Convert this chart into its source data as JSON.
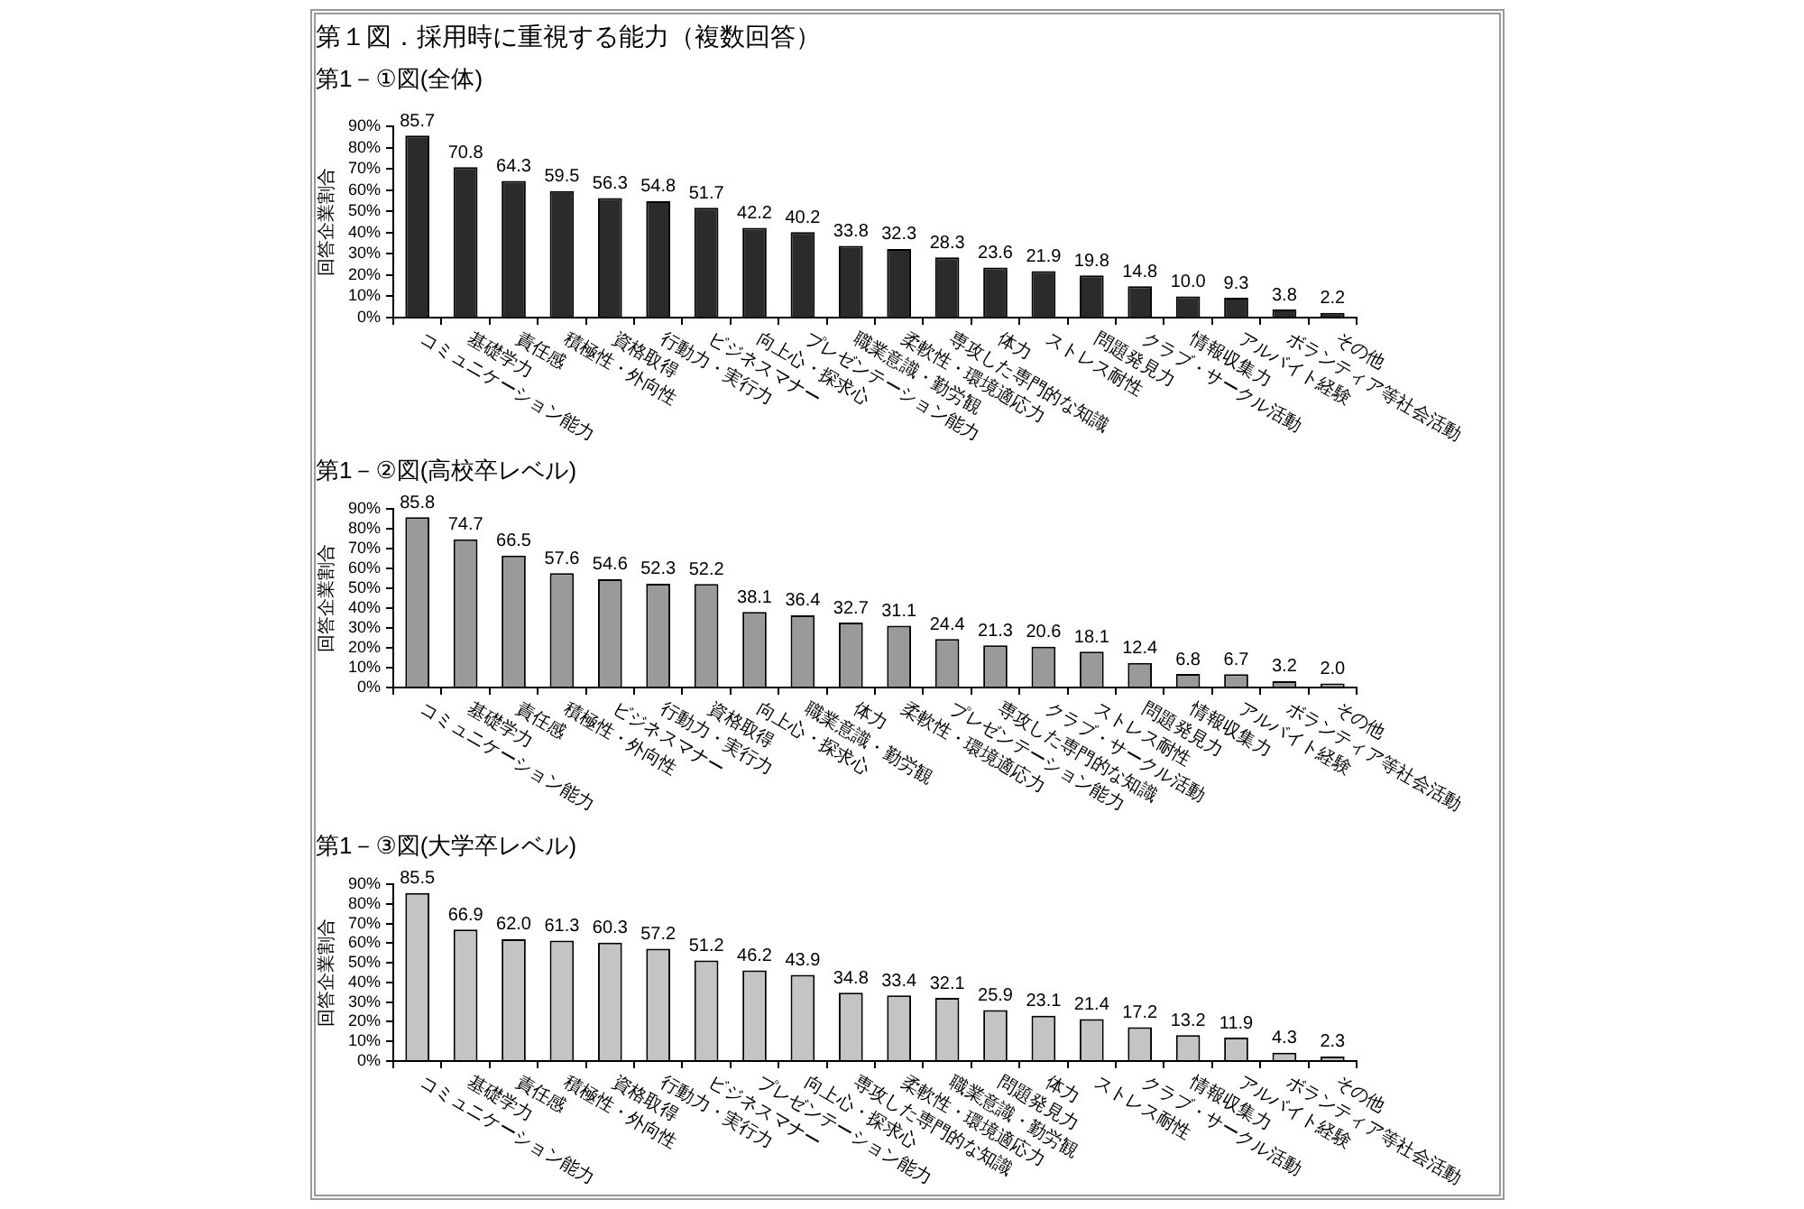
{
  "chart_data": [
    {
      "type": "bar",
      "title": "第１図．採用時に重視する能力（複数回答）",
      "subtitle": "第1－①図(全体)",
      "ylabel": "回答企業割合",
      "categories": [
        "コミュニケーション能力",
        "基礎学力",
        "責任感",
        "積極性・外向性",
        "資格取得",
        "行動力・実行力",
        "ビジネスマナー",
        "向上心・探求心",
        "プレゼンテーション能力",
        "職業意識・勤労観",
        "柔軟性・環境適応力",
        "専攻した専門的な知識",
        "体力",
        "ストレス耐性",
        "問題発見力",
        "クラブ・サークル活動",
        "情報収集力",
        "アルバイト経験",
        "ボランティア等社会活動",
        "その他"
      ],
      "values": [
        85.7,
        70.8,
        64.3,
        59.5,
        56.3,
        54.8,
        51.7,
        42.2,
        40.2,
        33.8,
        32.3,
        28.3,
        23.6,
        21.9,
        19.8,
        14.8,
        10.0,
        9.3,
        3.8,
        2.2
      ],
      "value_labels": [
        "85.7",
        "70.8",
        "64.3",
        "59.5",
        "56.3",
        "54.8",
        "51.7",
        "42.2",
        "40.2",
        "33.8",
        "32.3",
        "28.3",
        "23.6",
        "21.9",
        "19.8",
        "14.8",
        "10.0",
        "9.3",
        "3.8",
        "2.2"
      ],
      "color": "#2b2b2b",
      "ylim": [
        0,
        90
      ],
      "yticks": [
        {
          "value": 0,
          "label": "0%"
        },
        {
          "value": 10,
          "label": "10%"
        },
        {
          "value": 20,
          "label": "20%"
        },
        {
          "value": 30,
          "label": "30%"
        },
        {
          "value": 40,
          "label": "40%"
        },
        {
          "value": 50,
          "label": "50%"
        },
        {
          "value": 60,
          "label": "60%"
        },
        {
          "value": 70,
          "label": "70%"
        },
        {
          "value": 80,
          "label": "80%"
        },
        {
          "value": 90,
          "label": "90%"
        }
      ]
    },
    {
      "type": "bar",
      "title": "第1－②図(高校卒レベル)",
      "ylabel": "回答企業割合",
      "categories": [
        "コミュニケーション能力",
        "基礎学力",
        "責任感",
        "積極性・外向性",
        "ビジネスマナー",
        "行動力・実行力",
        "資格取得",
        "向上心・探求心",
        "職業意識・勤労観",
        "体力",
        "柔軟性・環境適応力",
        "プレゼンテーション能力",
        "専攻した専門的な知識",
        "クラブ・サークル活動",
        "ストレス耐性",
        "問題発見力",
        "情報収集力",
        "アルバイト経験",
        "ボランティア等社会活動",
        "その他"
      ],
      "values": [
        85.8,
        74.7,
        66.5,
        57.6,
        54.6,
        52.3,
        52.2,
        38.1,
        36.4,
        32.7,
        31.1,
        24.4,
        21.3,
        20.6,
        18.1,
        12.4,
        6.8,
        6.7,
        3.2,
        2.0
      ],
      "value_labels": [
        "85.8",
        "74.7",
        "66.5",
        "57.6",
        "54.6",
        "52.3",
        "52.2",
        "38.1",
        "36.4",
        "32.7",
        "31.1",
        "24.4",
        "21.3",
        "20.6",
        "18.1",
        "12.4",
        "6.8",
        "6.7",
        "3.2",
        "2.0"
      ],
      "color": "#9a9a9a",
      "ylim": [
        0,
        90
      ],
      "yticks": [
        {
          "value": 0,
          "label": "0%"
        },
        {
          "value": 10,
          "label": "10%"
        },
        {
          "value": 20,
          "label": "20%"
        },
        {
          "value": 30,
          "label": "30%"
        },
        {
          "value": 40,
          "label": "40%"
        },
        {
          "value": 50,
          "label": "50%"
        },
        {
          "value": 60,
          "label": "60%"
        },
        {
          "value": 70,
          "label": "70%"
        },
        {
          "value": 80,
          "label": "80%"
        },
        {
          "value": 90,
          "label": "90%"
        }
      ]
    },
    {
      "type": "bar",
      "title": "第1－③図(大学卒レベル)",
      "ylabel": "回答企業割合",
      "categories": [
        "コミュニケーション能力",
        "基礎学力",
        "責任感",
        "積極性・外向性",
        "資格取得",
        "行動力・実行力",
        "ビジネスマナー",
        "プレゼンテーション能力",
        "向上心・探求心",
        "専攻した専門的な知識",
        "柔軟性・環境適応力",
        "職業意識・勤労観",
        "問題発見力",
        "体力",
        "ストレス耐性",
        "クラブ・サークル活動",
        "情報収集力",
        "アルバイト経験",
        "ボランティア等社会活動",
        "その他"
      ],
      "values": [
        85.5,
        66.9,
        62.0,
        61.3,
        60.3,
        57.2,
        51.2,
        46.2,
        43.9,
        34.8,
        33.4,
        32.1,
        25.9,
        23.1,
        21.4,
        17.2,
        13.2,
        11.9,
        4.3,
        2.3
      ],
      "value_labels": [
        "85.5",
        "66.9",
        "62.0",
        "61.3",
        "60.3",
        "57.2",
        "51.2",
        "46.2",
        "43.9",
        "34.8",
        "33.4",
        "32.1",
        "25.9",
        "23.1",
        "21.4",
        "17.2",
        "13.2",
        "11.9",
        "4.3",
        "2.3"
      ],
      "color": "#c4c4c4",
      "ylim": [
        0,
        90
      ],
      "yticks": [
        {
          "value": 0,
          "label": "0%"
        },
        {
          "value": 10,
          "label": "10%"
        },
        {
          "value": 20,
          "label": "20%"
        },
        {
          "value": 30,
          "label": "30%"
        },
        {
          "value": 40,
          "label": "40%"
        },
        {
          "value": 50,
          "label": "50%"
        },
        {
          "value": 60,
          "label": "60%"
        },
        {
          "value": 70,
          "label": "70%"
        },
        {
          "value": 80,
          "label": "80%"
        },
        {
          "value": 90,
          "label": "90%"
        }
      ]
    }
  ]
}
